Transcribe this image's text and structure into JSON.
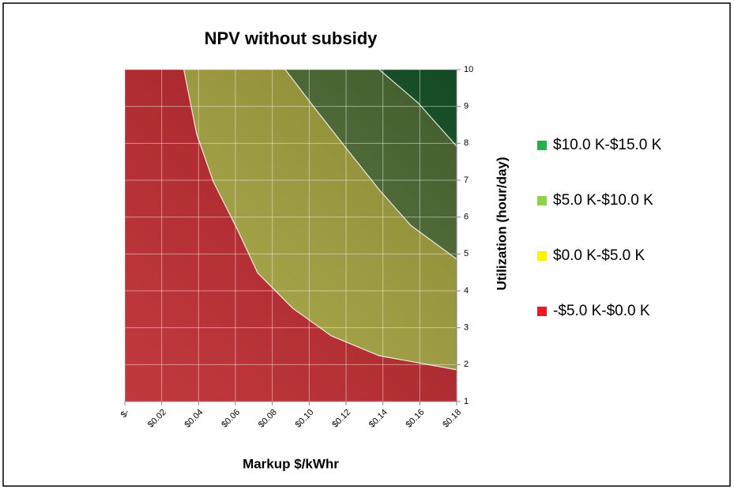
{
  "chart_data": {
    "type": "contour",
    "title": "NPV without subsidy",
    "x_label": "Markup $/kWhr",
    "y_label": "Utilization (hour/day)",
    "xlim": [
      0,
      0.18
    ],
    "ylim": [
      1,
      10
    ],
    "xticks": [
      {
        "value": 0,
        "label": "$-"
      },
      {
        "value": 0.02,
        "label": "$0.02"
      },
      {
        "value": 0.04,
        "label": "$0.04"
      },
      {
        "value": 0.06,
        "label": "$0.06"
      },
      {
        "value": 0.08,
        "label": "$0.08"
      },
      {
        "value": 0.1,
        "label": "$0.10"
      },
      {
        "value": 0.12,
        "label": "$0.12"
      },
      {
        "value": 0.14,
        "label": "$0.14"
      },
      {
        "value": 0.16,
        "label": "$0.16"
      },
      {
        "value": 0.18,
        "label": "$0.18"
      }
    ],
    "yticks": [
      1,
      2,
      3,
      4,
      5,
      6,
      7,
      8,
      9,
      10
    ],
    "grid": true,
    "series": [
      {
        "name": "-$5.0 K-$0.0 K",
        "color": "#ed1c24",
        "fill": "#b81e24"
      },
      {
        "name": "$0.0 K-$5.0 K",
        "color": "#fff200",
        "fill": "#a4a23a",
        "boundary": {
          "x": [
            0.032,
            0.039,
            0.048,
            0.061,
            0.072,
            0.091,
            0.112,
            0.138,
            0.18
          ],
          "y": [
            10,
            8.24,
            6.96,
            5.67,
            4.49,
            3.53,
            2.78,
            2.24,
            1.86
          ]
        }
      },
      {
        "name": "$5.0 K-$10.0 K",
        "color": "#92d050",
        "fill": "#4f6e34",
        "boundary": {
          "x": [
            0.087,
            0.104,
            0.121,
            0.138,
            0.155,
            0.18
          ],
          "y": [
            10,
            8.89,
            7.81,
            6.74,
            5.78,
            4.86
          ]
        }
      },
      {
        "name": "$10.0 K-$15.0 K",
        "color": "#22b14c",
        "fill": "#175a2c",
        "boundary": {
          "x": [
            0.138,
            0.159,
            0.18
          ],
          "y": [
            10,
            9.1,
            7.92
          ]
        }
      }
    ]
  }
}
